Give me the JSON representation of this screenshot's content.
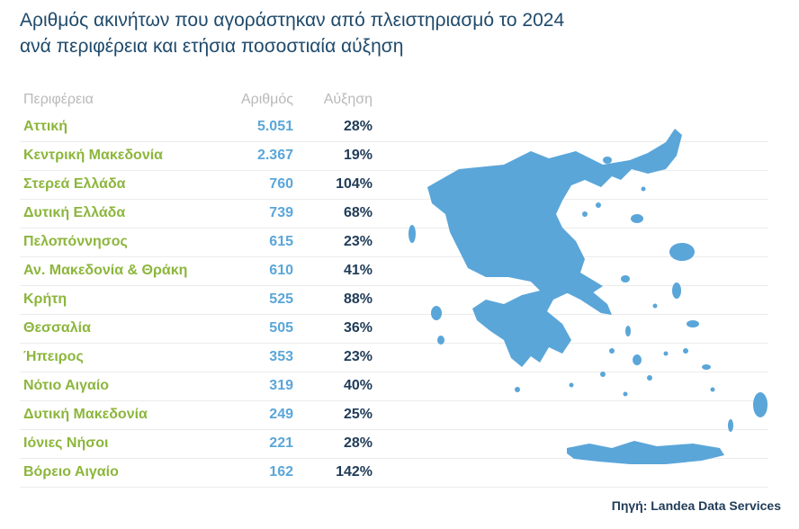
{
  "title": {
    "line1": "Αριθμός ακινήτων που αγοράστηκαν από πλειστηριασμό το 2024",
    "line2": "ανά περιφέρεια και ετήσια ποσοστιαία αύξηση"
  },
  "columns": {
    "region": "Περιφέρεια",
    "count": "Αριθμός",
    "growth": "Αύξηση"
  },
  "rows": [
    {
      "region": "Αττική",
      "count": "5.051",
      "growth": "28%"
    },
    {
      "region": "Κεντρική Μακεδονία",
      "count": "2.367",
      "growth": "19%"
    },
    {
      "region": "Στερεά Ελλάδα",
      "count": "760",
      "growth": "104%"
    },
    {
      "region": "Δυτική Ελλάδα",
      "count": "739",
      "growth": "68%"
    },
    {
      "region": "Πελοπόννησος",
      "count": "615",
      "growth": "23%"
    },
    {
      "region": "Αν. Μακεδονία & Θράκη",
      "count": "610",
      "growth": "41%"
    },
    {
      "region": "Κρήτη",
      "count": "525",
      "growth": "88%"
    },
    {
      "region": "Θεσσαλία",
      "count": "505",
      "growth": "36%"
    },
    {
      "region": "Ήπειρος",
      "count": "353",
      "growth": "23%"
    },
    {
      "region": "Νότιο Αιγαίο",
      "count": "319",
      "growth": "40%"
    },
    {
      "region": "Δυτική Μακεδονία",
      "count": "249",
      "growth": "25%"
    },
    {
      "region": "Ιόνιες Νήσοι",
      "count": "221",
      "growth": "28%"
    },
    {
      "region": "Βόρειο Αιγαίο",
      "count": "162",
      "growth": "142%"
    }
  ],
  "source": "Πηγή: Landea Data Services",
  "colors": {
    "region_text": "#8cb63c",
    "count_text": "#5aa6d9",
    "growth_text": "#1f3b57",
    "map_fill": "#5aa6d9"
  },
  "chart_data": {
    "type": "table",
    "title": "Αριθμός ακινήτων που αγοράστηκαν από πλειστηριασμό το 2024 ανά περιφέρεια και ετήσια ποσοστιαία αύξηση",
    "columns": [
      "Περιφέρεια",
      "Αριθμός",
      "Αύξηση"
    ],
    "categories": [
      "Αττική",
      "Κεντρική Μακεδονία",
      "Στερεά Ελλάδα",
      "Δυτική Ελλάδα",
      "Πελοπόννησος",
      "Αν. Μακεδονία & Θράκη",
      "Κρήτη",
      "Θεσσαλία",
      "Ήπειρος",
      "Νότιο Αιγαίο",
      "Δυτική Μακεδονία",
      "Ιόνιες Νήσοι",
      "Βόρειο Αιγαίο"
    ],
    "series": [
      {
        "name": "Αριθμός",
        "values": [
          5051,
          2367,
          760,
          739,
          615,
          610,
          525,
          505,
          353,
          319,
          249,
          221,
          162
        ]
      },
      {
        "name": "Αύξηση",
        "values": [
          28,
          19,
          104,
          68,
          23,
          41,
          88,
          36,
          23,
          40,
          25,
          28,
          142
        ]
      }
    ]
  }
}
